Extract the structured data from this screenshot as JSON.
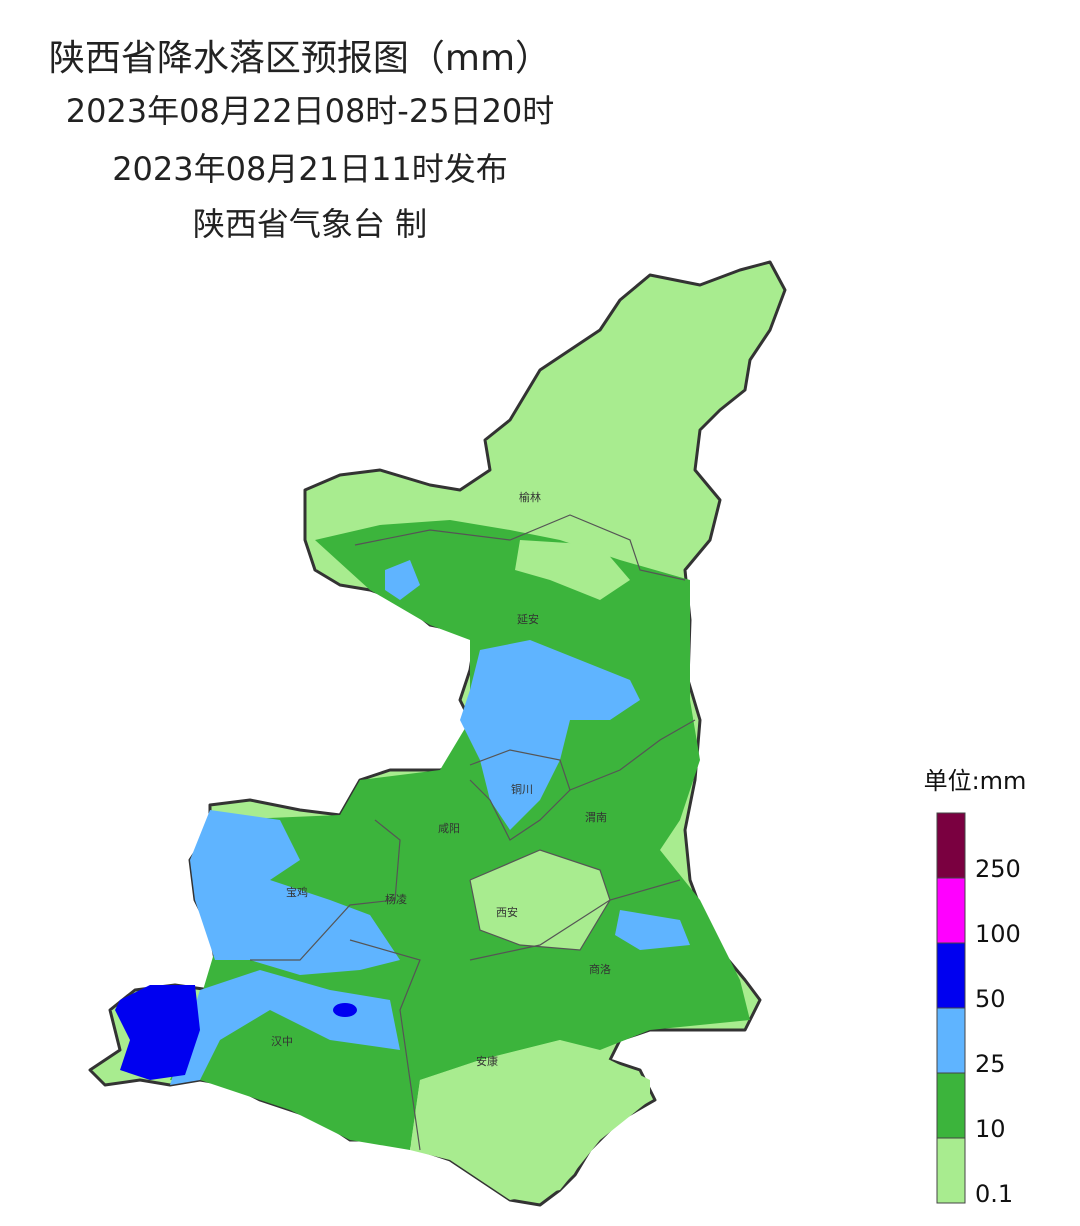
{
  "header": {
    "title": "陕西省降水落区预报图（mm）",
    "period": "2023年08月22日08时-25日20时",
    "issued": "2023年08月21日11时发布",
    "producer": "陕西省气象台 制"
  },
  "map": {
    "cities": [
      "榆林",
      "延安",
      "铜川",
      "渭南",
      "咸阳",
      "宝鸡",
      "杨凌",
      "西安",
      "商洛",
      "汉中",
      "安康"
    ]
  },
  "legend": {
    "unit": "单位:mm",
    "bounds": [
      0.1,
      10,
      25,
      50,
      100,
      250
    ],
    "colors": [
      "#a8ec8f",
      "#3cb43c",
      "#5fb4ff",
      "#0000f0",
      "#ff00ff",
      "#7a0040"
    ]
  }
}
